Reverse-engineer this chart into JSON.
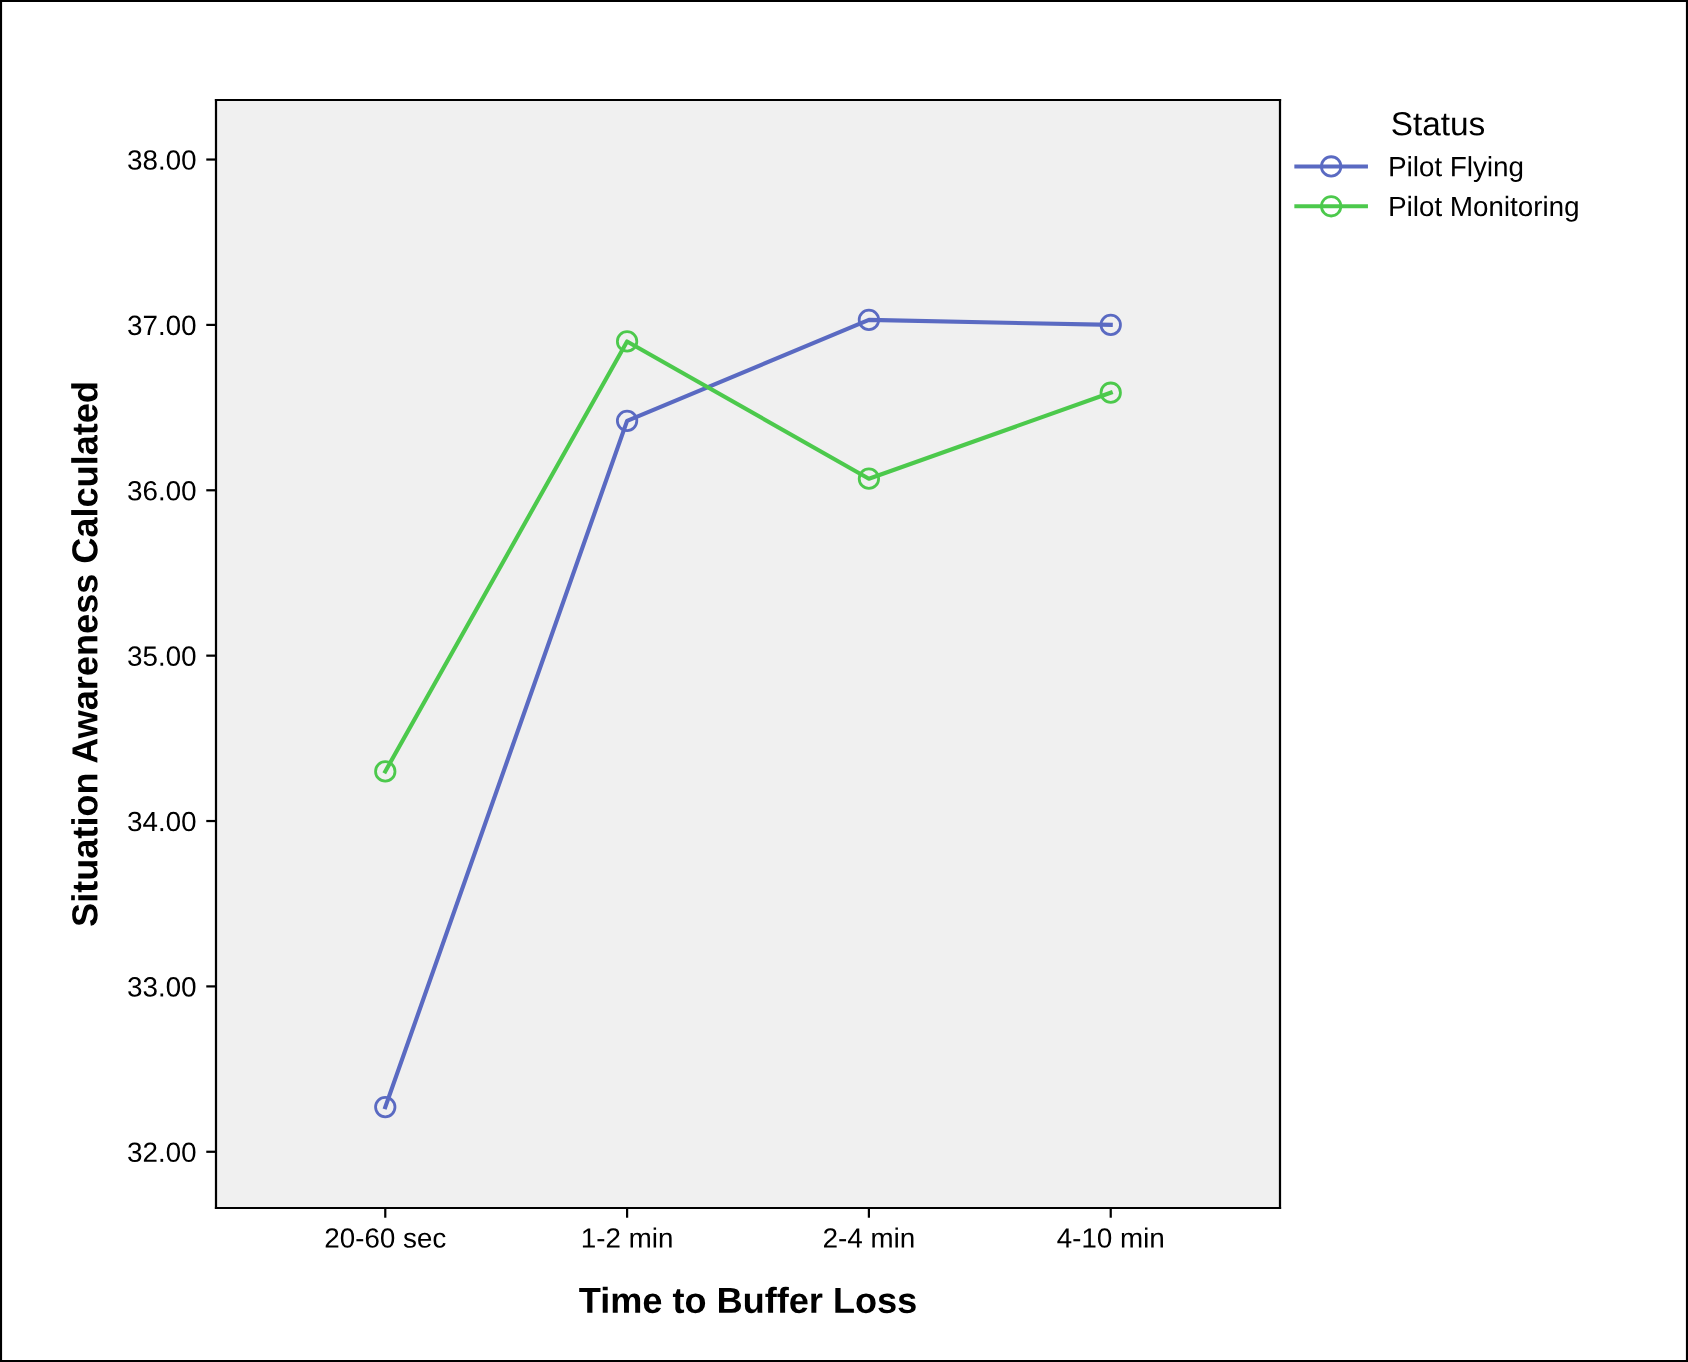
{
  "chart_data": {
    "type": "line",
    "xlabel": "Time to Buffer Loss",
    "ylabel": "Situation Awareness Calculated",
    "legend_title": "Status",
    "legend": "top right",
    "marker": "circle",
    "line_style": "solid",
    "grid": false,
    "categories": [
      "20-60 sec",
      "1-2 min",
      "2-4 min",
      "4-10 min"
    ],
    "series": [
      {
        "name": "Pilot Flying",
        "color": "#5a6ac2",
        "values": [
          32.27,
          36.42,
          37.03,
          37.0
        ]
      },
      {
        "name": "Pilot Monitoring",
        "color": "#4cc94c",
        "values": [
          34.3,
          36.9,
          36.07,
          36.59
        ]
      }
    ],
    "ylim": [
      31.66,
      38.36
    ],
    "yticks": [
      {
        "value": 32,
        "label": "32.00"
      },
      {
        "value": 33,
        "label": "33.00"
      },
      {
        "value": 34,
        "label": "34.00"
      },
      {
        "value": 35,
        "label": "35.00"
      },
      {
        "value": 36,
        "label": "36.00"
      },
      {
        "value": 37,
        "label": "37.00"
      },
      {
        "value": 38,
        "label": "38.00"
      }
    ]
  }
}
